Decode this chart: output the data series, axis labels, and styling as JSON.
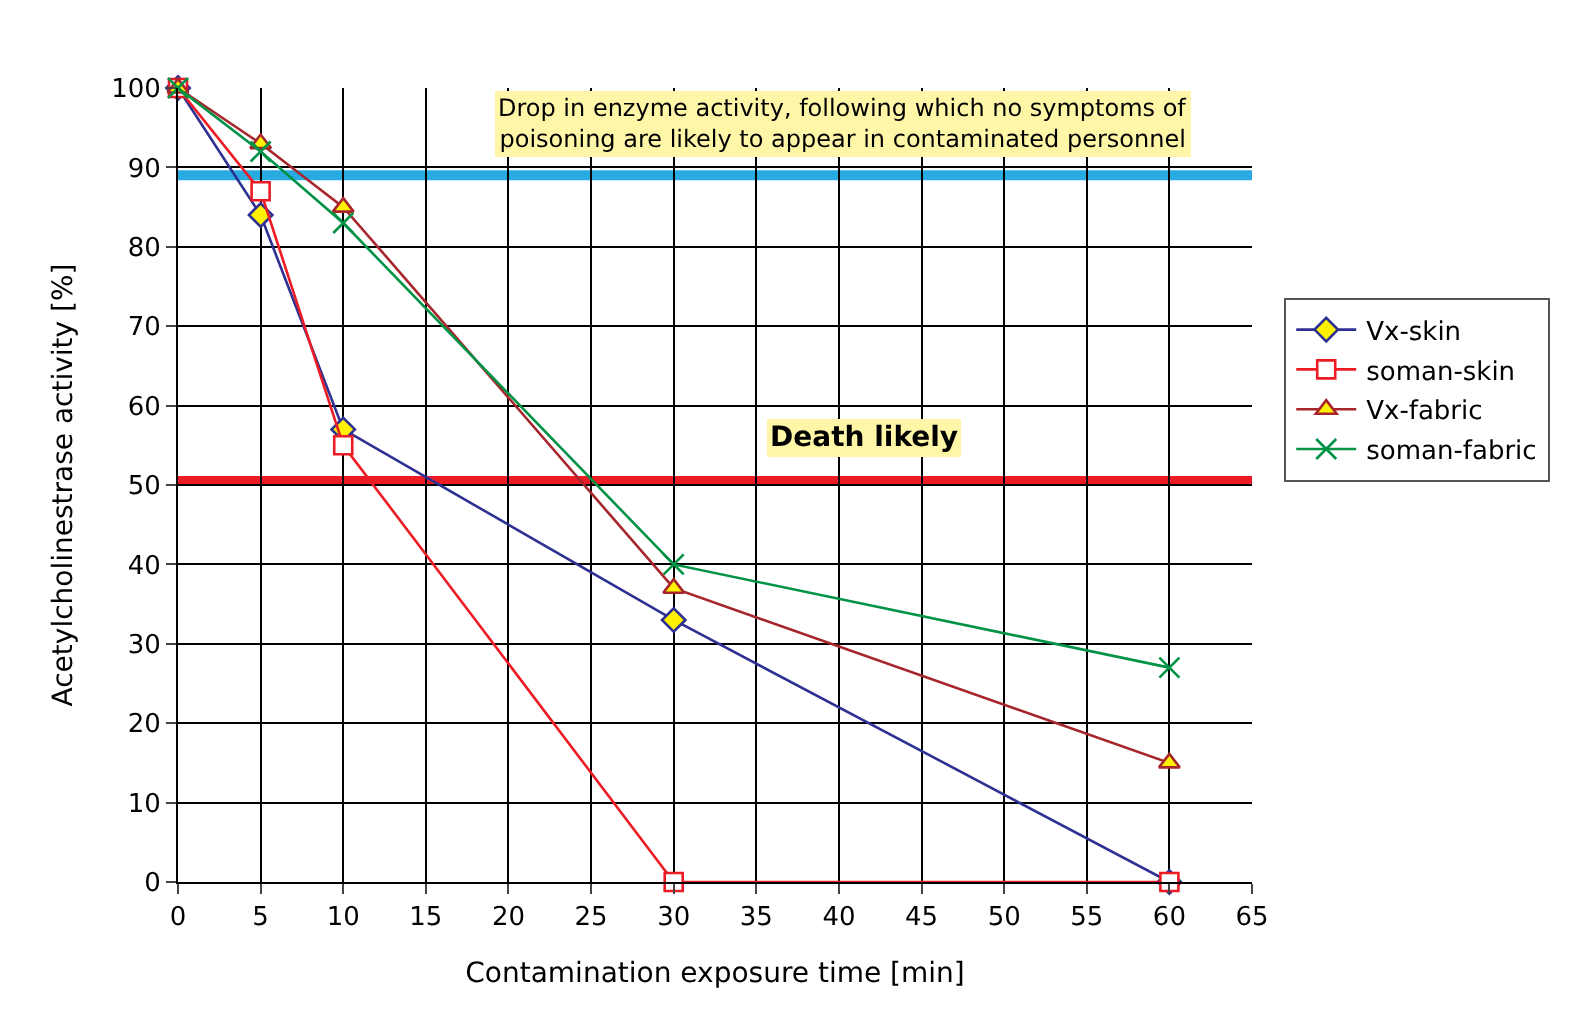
{
  "chart_data": {
    "type": "line",
    "xlabel": "Contamination exposure time [min]",
    "ylabel": "Acetylcholinestrase activity [%]",
    "x": [
      0,
      5,
      10,
      30,
      60
    ],
    "series": [
      {
        "name": "Vx-skin",
        "color": "#2e3192",
        "marker": "diamond",
        "values": [
          100,
          84,
          57,
          33,
          0
        ]
      },
      {
        "name": "soman-skin",
        "color": "#ed1c24",
        "marker": "square",
        "values": [
          100,
          87,
          55,
          0,
          0
        ]
      },
      {
        "name": "Vx-fabric",
        "color": "#a6262c",
        "marker": "triangle",
        "values": [
          100,
          93,
          85,
          37,
          15
        ]
      },
      {
        "name": "soman-fabric",
        "color": "#009245",
        "marker": "cross",
        "values": [
          100,
          92,
          83,
          40,
          27
        ]
      }
    ],
    "ref_lines": [
      {
        "axis": "y",
        "value": 89,
        "label": "Drop in enzyme activity, following which no symptoms of poisoning are likely to appear in contaminated personnel",
        "color": "#29abe2"
      },
      {
        "axis": "y",
        "value": 50.5,
        "label": "Death likely",
        "color": "#ed1c24"
      }
    ],
    "xlim": [
      0,
      65
    ],
    "xticks": [
      0,
      5,
      10,
      15,
      20,
      25,
      30,
      35,
      40,
      45,
      50,
      55,
      60,
      65
    ],
    "ylim": [
      0,
      100
    ],
    "yticks": [
      0,
      10,
      20,
      30,
      40,
      50,
      60,
      70,
      80,
      90,
      100
    ],
    "grid": true,
    "legend": "right",
    "line_style": "solid"
  }
}
